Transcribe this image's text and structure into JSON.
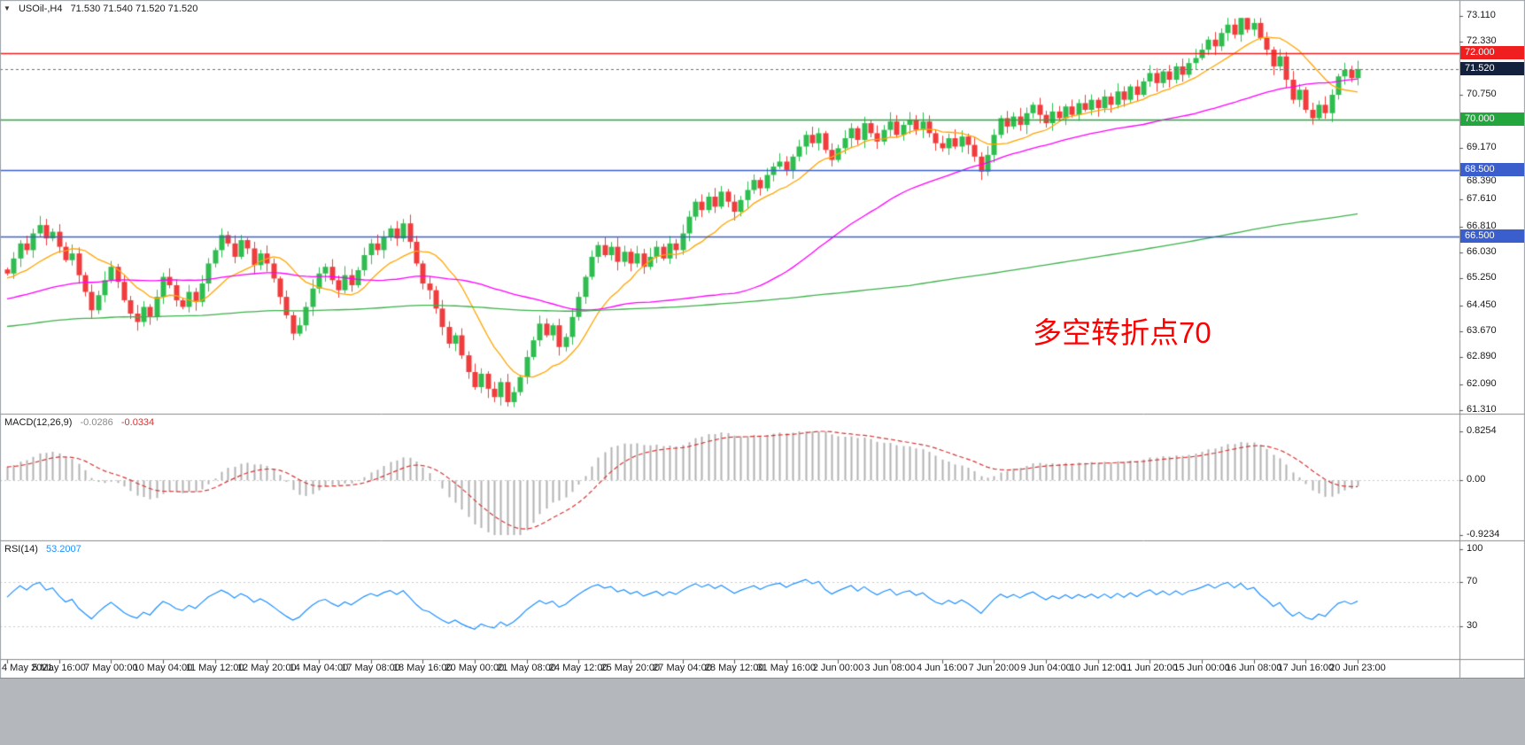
{
  "header": {
    "collapse_icon": "▼",
    "symbol_period": "USOil-,H4",
    "ohlc": "71.530 71.540 71.520 71.520"
  },
  "macd_header": {
    "label": "MACD(12,26,9)",
    "main": "-0.0286",
    "signal": "-0.0334"
  },
  "rsi_header": {
    "label": "RSI(14)",
    "value": "53.2007"
  },
  "chart_data": {
    "type": "candlestick",
    "symbol": "USOil-",
    "timeframe": "H4",
    "ohlc_display": {
      "open": "71.530",
      "high": "71.540",
      "low": "71.520",
      "close": "71.520"
    },
    "price_axis": {
      "min": 61.31,
      "max": 73.11,
      "ticks": [
        "73.110",
        "72.330",
        "70.750",
        "69.170",
        "68.390",
        "67.610",
        "66.810",
        "66.030",
        "65.250",
        "64.450",
        "63.670",
        "62.890",
        "62.090",
        "61.310"
      ]
    },
    "x_labels": [
      "4 May 2021",
      "5 May 16:00",
      "7 May 00:00",
      "10 May 04:00",
      "11 May 12:00",
      "12 May 20:00",
      "14 May 04:00",
      "17 May 08:00",
      "18 May 16:00",
      "20 May 00:00",
      "21 May 08:00",
      "24 May 12:00",
      "25 May 20:00",
      "27 May 04:00",
      "28 May 12:00",
      "31 May 16:00",
      "2 Jun 00:00",
      "3 Jun 08:00",
      "4 Jun 16:00",
      "7 Jun 20:00",
      "9 Jun 04:00",
      "10 Jun 12:00",
      "11 Jun 20:00",
      "15 Jun 00:00",
      "16 Jun 08:00",
      "17 Jun 16:00",
      "20 Jun 23:00"
    ],
    "candles_per_label": 8,
    "closes": [
      65.4,
      65.85,
      66.3,
      66.1,
      66.6,
      66.85,
      66.45,
      66.65,
      66.2,
      65.8,
      66.0,
      65.35,
      64.85,
      64.3,
      64.75,
      65.2,
      65.6,
      65.15,
      64.6,
      64.2,
      63.95,
      64.4,
      64.1,
      64.7,
      65.3,
      65.05,
      64.6,
      64.4,
      64.85,
      64.55,
      65.1,
      65.7,
      66.1,
      66.55,
      66.3,
      65.9,
      66.4,
      66.15,
      65.65,
      66.0,
      65.7,
      65.25,
      64.7,
      64.15,
      63.6,
      63.85,
      64.4,
      64.95,
      65.4,
      65.6,
      65.2,
      64.9,
      65.35,
      65.05,
      65.5,
      65.95,
      66.3,
      66.1,
      66.5,
      66.75,
      66.45,
      66.9,
      66.35,
      65.7,
      65.1,
      64.9,
      64.35,
      63.8,
      63.3,
      63.55,
      62.95,
      62.45,
      62.0,
      62.4,
      61.95,
      61.7,
      62.15,
      61.55,
      61.85,
      62.3,
      62.9,
      63.4,
      63.9,
      63.55,
      63.85,
      63.2,
      63.5,
      64.1,
      64.7,
      65.3,
      65.9,
      66.25,
      65.95,
      66.2,
      65.75,
      66.05,
      65.7,
      66.0,
      65.6,
      65.9,
      66.2,
      65.85,
      66.3,
      66.1,
      66.6,
      67.1,
      67.55,
      67.3,
      67.7,
      67.4,
      67.85,
      67.55,
      67.25,
      67.6,
      67.9,
      68.2,
      67.95,
      68.35,
      68.6,
      68.75,
      68.5,
      68.9,
      69.2,
      69.55,
      69.3,
      69.6,
      69.1,
      68.8,
      69.15,
      69.45,
      69.75,
      69.4,
      69.9,
      69.6,
      69.35,
      69.7,
      69.95,
      69.55,
      69.85,
      70.0,
      69.7,
      69.95,
      69.6,
      69.3,
      69.15,
      69.45,
      69.2,
      69.5,
      69.25,
      68.9,
      68.45,
      68.95,
      69.55,
      70.05,
      69.8,
      70.1,
      69.85,
      70.2,
      70.45,
      70.15,
      69.9,
      70.25,
      70.05,
      70.4,
      70.15,
      70.5,
      70.3,
      70.6,
      70.35,
      70.7,
      70.45,
      70.85,
      70.6,
      71.0,
      70.75,
      71.15,
      71.4,
      71.1,
      71.45,
      71.2,
      71.6,
      71.35,
      71.7,
      71.85,
      72.1,
      72.4,
      72.2,
      72.6,
      72.85,
      72.55,
      73.05,
      72.7,
      72.9,
      72.45,
      72.1,
      71.6,
      71.9,
      71.2,
      70.6,
      70.9,
      70.3,
      70.05,
      70.45,
      70.2,
      70.75,
      71.3,
      71.5,
      71.25,
      71.52
    ],
    "hlines": [
      {
        "value": 72.0,
        "label": "72.000",
        "color": "#f01f1f"
      },
      {
        "value": 70.0,
        "label": "70.000",
        "color": "#23a63e"
      },
      {
        "value": 68.5,
        "label": "68.500",
        "color": "#3a5fcd"
      },
      {
        "value": 66.5,
        "label": "66.500",
        "color": "#3a5fcd"
      }
    ],
    "current_price": {
      "value": 71.52,
      "label": "71.520",
      "box_color": "#14213d"
    },
    "moving_averages": [
      {
        "name": "fast-ma",
        "color": "#ffa500"
      },
      {
        "name": "medium-ma",
        "color": "#ff00ff"
      },
      {
        "name": "slow-ma",
        "color": "#3db24b"
      }
    ],
    "candle_colors": {
      "up": "#2ebd4e",
      "down": "#f03c3c"
    },
    "indicators": {
      "macd": {
        "label": "MACD(12,26,9)",
        "main_value": "-0.0286",
        "signal_value": "-0.0334",
        "axis_ticks": [
          "0.8254",
          "0.00",
          "-0.9234"
        ],
        "range": [
          -0.9234,
          0.8254
        ],
        "histogram_color": "#b3b3b3",
        "signal_color": "#d83434"
      },
      "rsi": {
        "label": "RSI(14)",
        "value": "53.2007",
        "axis_ticks": [
          "100",
          "70",
          "30"
        ],
        "levels": [
          70,
          30
        ],
        "line_color": "#1e90ff"
      }
    },
    "annotation": {
      "text": "多空转折点70",
      "color": "#ff0000"
    }
  }
}
